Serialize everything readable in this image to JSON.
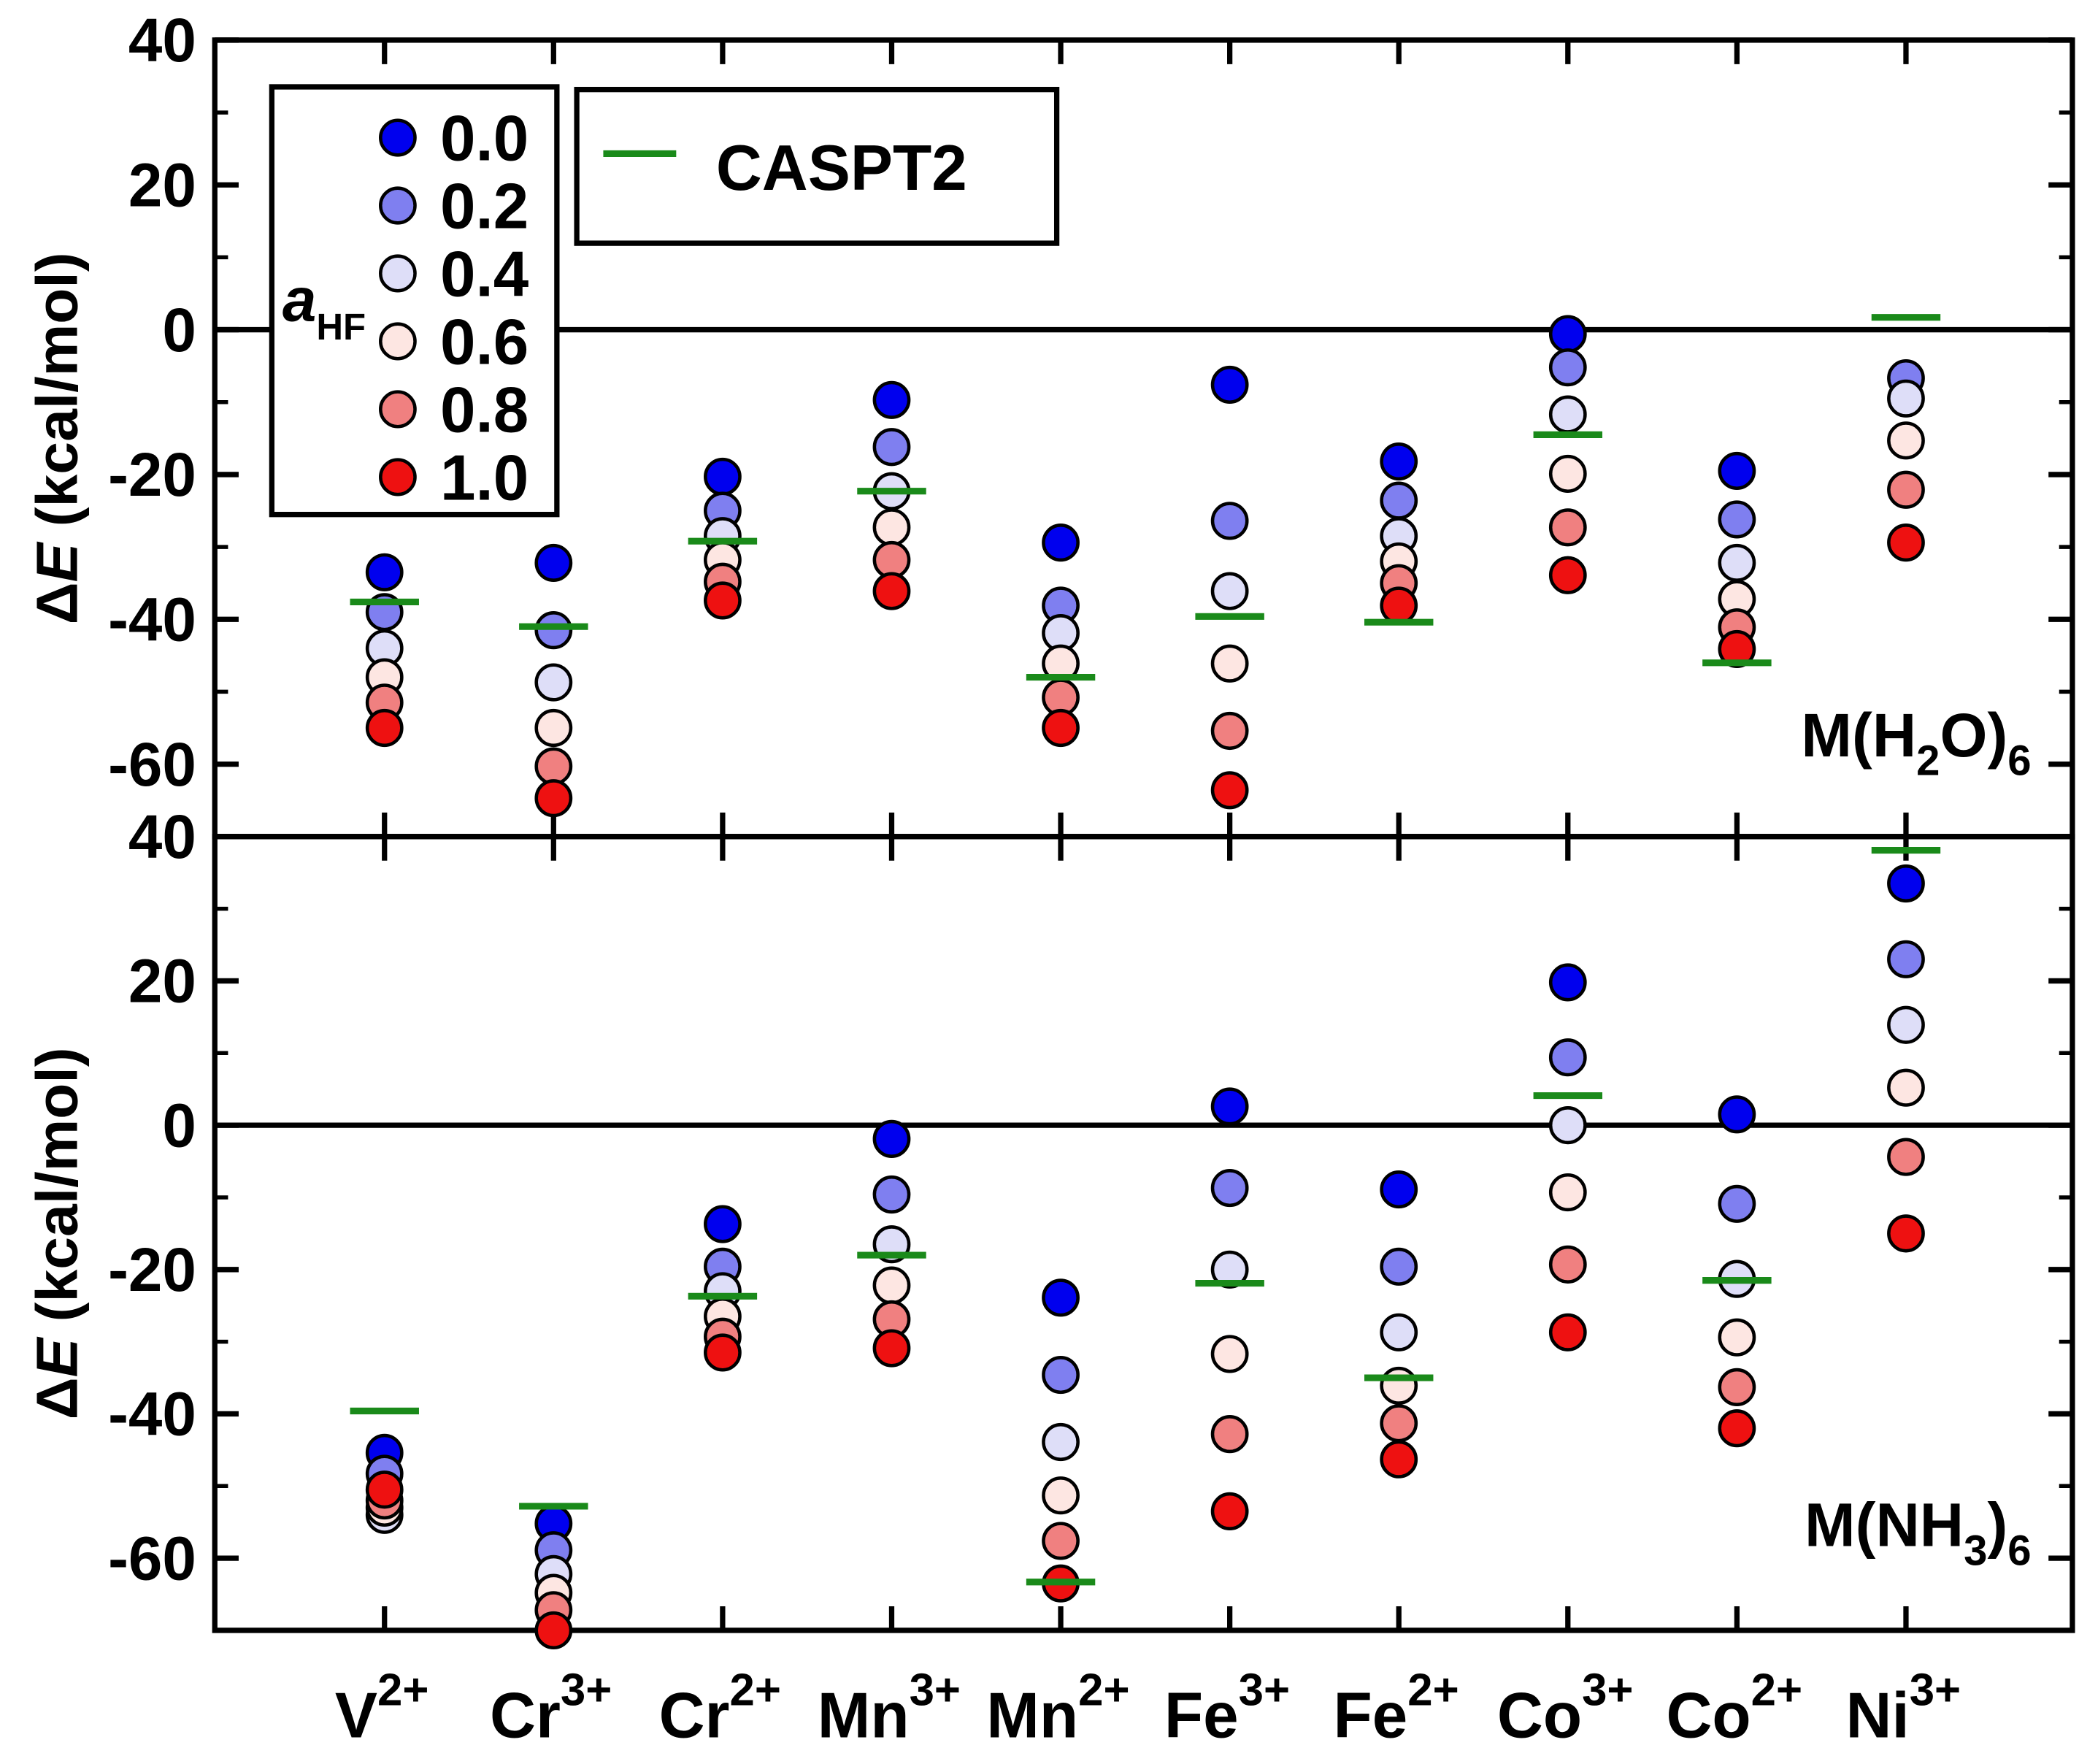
{
  "chart_data": [
    {
      "type": "scatter",
      "ylabel": [
        "Δ",
        "E",
        " (kcal/mol)"
      ],
      "panel_label": [
        "M(H",
        "2",
        "O)",
        "6"
      ],
      "legend_title": [
        "a",
        "HF"
      ],
      "ylim": [
        -70,
        40
      ],
      "yticks": [
        -60,
        -40,
        -20,
        0,
        20,
        40
      ],
      "zero_line": true,
      "series": [
        {
          "name": "0.0",
          "color": "#0000ee",
          "values": [
            -33.5,
            -32.2,
            -20.3,
            -9.7,
            -29.4,
            -7.6,
            -18.2,
            -0.6,
            -19.5,
            null
          ]
        },
        {
          "name": "0.2",
          "color": "#7f7ff0",
          "values": [
            -39,
            -41.5,
            -25,
            -16.2,
            -38.1,
            -26.4,
            -23.6,
            -5.2,
            -26.2,
            -6.7
          ]
        },
        {
          "name": "0.4",
          "color": "#dedef8",
          "values": [
            -44,
            -48.7,
            -28.5,
            -22.3,
            -41.9,
            -36.1,
            -28.5,
            -11.7,
            -32.2,
            -9.5
          ]
        },
        {
          "name": "0.6",
          "color": "#fde6e2",
          "values": [
            -48,
            -55,
            -31.8,
            -27.3,
            -46.1,
            -46.1,
            -32,
            -19.9,
            -37.2,
            -15.3
          ]
        },
        {
          "name": "0.8",
          "color": "#f08080",
          "values": [
            -51.5,
            -60.3,
            -34.8,
            -31.8,
            -50.8,
            -55.4,
            -35,
            -27.3,
            -41.1,
            -22.1
          ]
        },
        {
          "name": "1.0",
          "color": "#ee1111",
          "values": [
            -55,
            -64.7,
            -37.4,
            -36.1,
            -55,
            -63.6,
            -38.1,
            -33.9,
            -44.1,
            -29.4
          ]
        },
        {
          "name": "CASPT2",
          "color": "#1a8a1a",
          "marker": "dash",
          "values": [
            -37.6,
            -41,
            -29.2,
            -22.3,
            -48,
            -39.6,
            -40.4,
            -14.5,
            -46,
            1.7
          ]
        }
      ]
    },
    {
      "type": "scatter",
      "ylabel": [
        "Δ",
        "E",
        " (kcal/mol)"
      ],
      "panel_label": [
        "M(NH",
        "3",
        ")",
        "6"
      ],
      "ylim": [
        -70,
        40
      ],
      "yticks": [
        -60,
        -40,
        -20,
        0,
        20,
        40
      ],
      "zero_line": true,
      "categories": [
        {
          "base": "V",
          "charge": "2+"
        },
        {
          "base": "Cr",
          "charge": "3+"
        },
        {
          "base": "Cr",
          "charge": "2+"
        },
        {
          "base": "Mn",
          "charge": "3+"
        },
        {
          "base": "Mn",
          "charge": "2+"
        },
        {
          "base": "Fe",
          "charge": "3+"
        },
        {
          "base": "Fe",
          "charge": "2+"
        },
        {
          "base": "Co",
          "charge": "3+"
        },
        {
          "base": "Co",
          "charge": "2+"
        },
        {
          "base": "Ni",
          "charge": "3+"
        }
      ],
      "series": [
        {
          "color": "#0000ee",
          "values": [
            -45.4,
            -55.2,
            -13.7,
            -1.9,
            -23.9,
            2.6,
            -8.9,
            19.8,
            1.5,
            33.5
          ]
        },
        {
          "color": "#7f7ff0",
          "values": [
            -48.3,
            -58.9,
            -19.6,
            -9.6,
            -34.6,
            -8.7,
            -19.6,
            9.4,
            -10.9,
            23
          ]
        },
        {
          "color": "#dedef8",
          "values": [
            -54,
            -62.2,
            -23,
            -16.5,
            -43.9,
            -20,
            -28.7,
            0,
            -21.3,
            13.9
          ]
        },
        {
          "color": "#fde6e2",
          "values": [
            -53,
            -64.8,
            -26.5,
            -22.2,
            -51.3,
            -31.7,
            -36.1,
            -9.3,
            -29.4,
            5.2
          ]
        },
        {
          "color": "#f08080",
          "values": [
            -52,
            -67.2,
            -29.3,
            -26.9,
            -57.6,
            -42.8,
            -41.3,
            -19.3,
            -36.3,
            -4.4
          ]
        },
        {
          "color": "#ee1111",
          "values": [
            -50.5,
            -70,
            -31.5,
            -30.9,
            -63.5,
            -53.5,
            -46.3,
            -28.7,
            -42,
            -15
          ]
        },
        {
          "color": "#1a8a1a",
          "marker": "dash",
          "values": [
            -39.6,
            -52.8,
            -23.7,
            -18,
            -63.3,
            -21.9,
            -35,
            4.1,
            -21.5,
            38.1
          ]
        }
      ]
    }
  ]
}
